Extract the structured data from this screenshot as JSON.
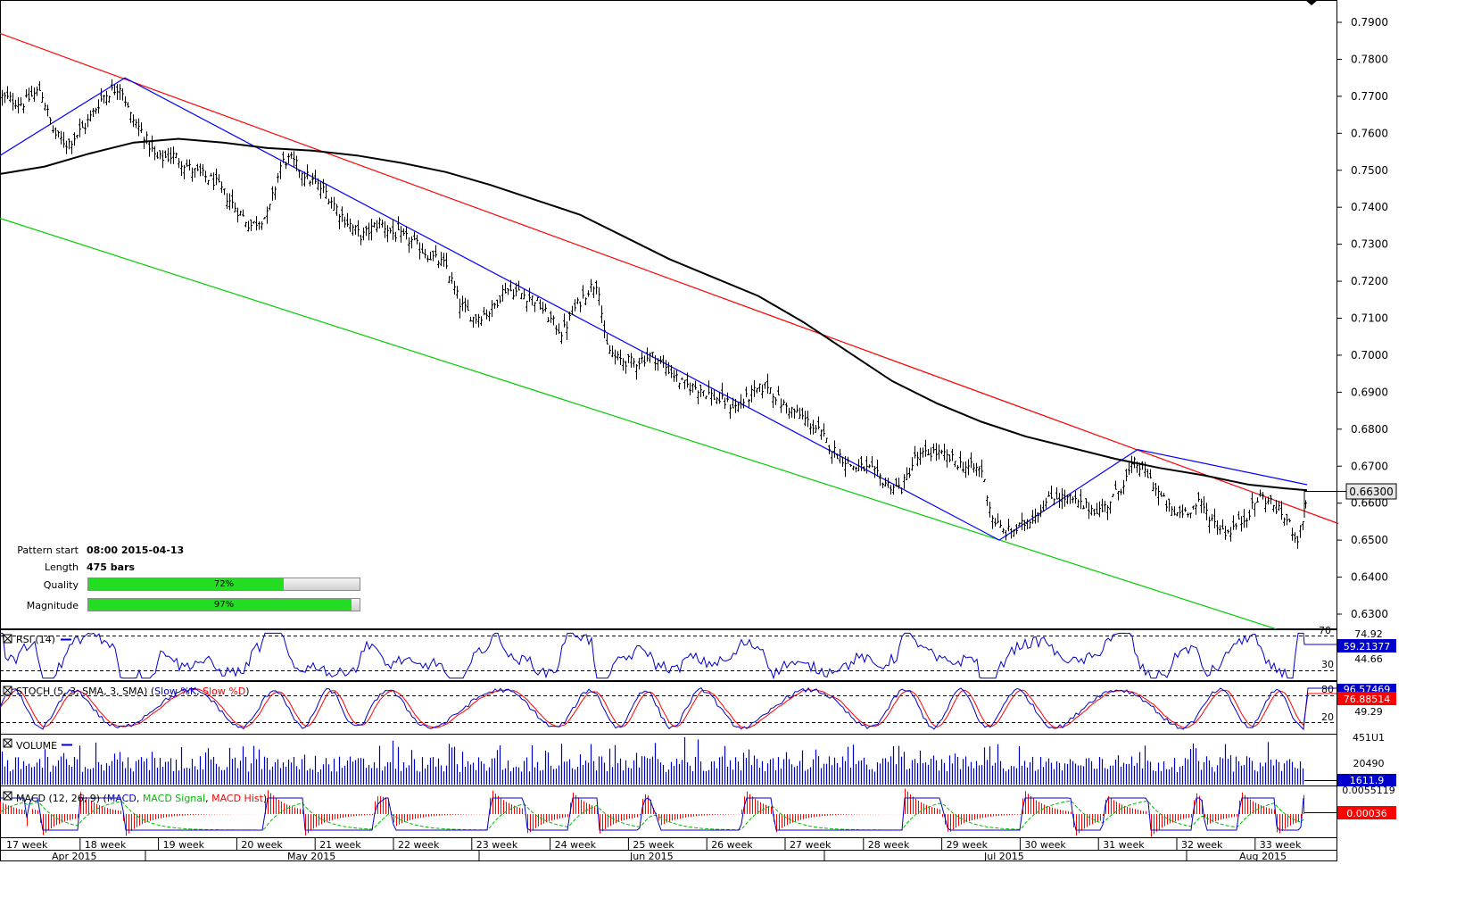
{
  "chart_data": {
    "type": "candlestick",
    "instrument_note": "",
    "main": {
      "ylim": [
        0.625,
        0.795
      ],
      "y_ticks": [
        "0.7900",
        "0.7800",
        "0.7700",
        "0.7600",
        "0.7500",
        "0.7400",
        "0.7300",
        "0.7200",
        "0.7100",
        "0.7000",
        "0.6900",
        "0.6800",
        "0.6700",
        "0.6600",
        "0.6500",
        "0.6400",
        "0.6300"
      ],
      "last_price": "0.66300",
      "price_path": [
        [
          0,
          0.77
        ],
        [
          25,
          0.768
        ],
        [
          45,
          0.772
        ],
        [
          60,
          0.76
        ],
        [
          75,
          0.757
        ],
        [
          95,
          0.762
        ],
        [
          115,
          0.77
        ],
        [
          135,
          0.773
        ],
        [
          145,
          0.765
        ],
        [
          160,
          0.76
        ],
        [
          175,
          0.753
        ],
        [
          195,
          0.754
        ],
        [
          215,
          0.75
        ],
        [
          240,
          0.747
        ],
        [
          260,
          0.741
        ],
        [
          280,
          0.735
        ],
        [
          300,
          0.738
        ],
        [
          315,
          0.752
        ],
        [
          325,
          0.753
        ],
        [
          345,
          0.748
        ],
        [
          365,
          0.744
        ],
        [
          385,
          0.737
        ],
        [
          405,
          0.732
        ],
        [
          425,
          0.736
        ],
        [
          440,
          0.733
        ],
        [
          460,
          0.731
        ],
        [
          480,
          0.727
        ],
        [
          500,
          0.724
        ],
        [
          515,
          0.714
        ],
        [
          530,
          0.71
        ],
        [
          550,
          0.712
        ],
        [
          565,
          0.718
        ],
        [
          580,
          0.717
        ],
        [
          600,
          0.715
        ],
        [
          615,
          0.71
        ],
        [
          630,
          0.706
        ],
        [
          645,
          0.713
        ],
        [
          660,
          0.718
        ],
        [
          670,
          0.72
        ],
        [
          678,
          0.703
        ],
        [
          690,
          0.699
        ],
        [
          710,
          0.698
        ],
        [
          730,
          0.7
        ],
        [
          750,
          0.696
        ],
        [
          765,
          0.692
        ],
        [
          785,
          0.691
        ],
        [
          805,
          0.688
        ],
        [
          825,
          0.686
        ],
        [
          845,
          0.69
        ],
        [
          860,
          0.692
        ],
        [
          875,
          0.687
        ],
        [
          895,
          0.684
        ],
        [
          915,
          0.68
        ],
        [
          935,
          0.674
        ],
        [
          955,
          0.67
        ],
        [
          975,
          0.669
        ],
        [
          995,
          0.665
        ],
        [
          1010,
          0.664
        ],
        [
          1025,
          0.672
        ],
        [
          1045,
          0.674
        ],
        [
          1065,
          0.672
        ],
        [
          1080,
          0.67
        ],
        [
          1100,
          0.669
        ],
        [
          1112,
          0.656
        ],
        [
          1125,
          0.652
        ],
        [
          1140,
          0.653
        ],
        [
          1160,
          0.657
        ],
        [
          1180,
          0.662
        ],
        [
          1200,
          0.661
        ],
        [
          1215,
          0.659
        ],
        [
          1235,
          0.658
        ],
        [
          1255,
          0.664
        ],
        [
          1272,
          0.671
        ],
        [
          1285,
          0.668
        ],
        [
          1300,
          0.662
        ],
        [
          1315,
          0.657
        ],
        [
          1330,
          0.658
        ],
        [
          1345,
          0.66
        ],
        [
          1360,
          0.655
        ],
        [
          1375,
          0.652
        ],
        [
          1395,
          0.656
        ],
        [
          1412,
          0.662
        ],
        [
          1425,
          0.66
        ],
        [
          1440,
          0.656
        ],
        [
          1455,
          0.65
        ],
        [
          1465,
          0.662
        ]
      ],
      "sma_path": [
        [
          0,
          0.749
        ],
        [
          50,
          0.751
        ],
        [
          100,
          0.7545
        ],
        [
          150,
          0.7575
        ],
        [
          200,
          0.7585
        ],
        [
          250,
          0.7575
        ],
        [
          300,
          0.756
        ],
        [
          350,
          0.7553
        ],
        [
          400,
          0.754
        ],
        [
          450,
          0.752
        ],
        [
          500,
          0.7495
        ],
        [
          550,
          0.746
        ],
        [
          600,
          0.742
        ],
        [
          650,
          0.738
        ],
        [
          700,
          0.732
        ],
        [
          750,
          0.726
        ],
        [
          800,
          0.721
        ],
        [
          850,
          0.716
        ],
        [
          900,
          0.709
        ],
        [
          950,
          0.701
        ],
        [
          1000,
          0.693
        ],
        [
          1050,
          0.687
        ],
        [
          1100,
          0.682
        ],
        [
          1150,
          0.678
        ],
        [
          1200,
          0.675
        ],
        [
          1250,
          0.672
        ],
        [
          1300,
          0.6695
        ],
        [
          1350,
          0.6675
        ],
        [
          1400,
          0.665
        ],
        [
          1440,
          0.664
        ],
        [
          1465,
          0.6635
        ]
      ],
      "trendlines": [
        {
          "name": "upper",
          "color": "#ff0000",
          "points": [
            [
              0,
              0.787
            ],
            [
              1500,
              0.6545
            ]
          ]
        },
        {
          "name": "lower",
          "color": "#00cc00",
          "points": [
            [
              0,
              0.737
            ],
            [
              1430,
              0.626
            ]
          ]
        },
        {
          "name": "zigzag",
          "color": "#0000ff",
          "points": [
            [
              0,
              0.754
            ],
            [
              140,
              0.775
            ],
            [
              1120,
              0.65
            ],
            [
              1275,
              0.6745
            ],
            [
              1465,
              0.665
            ]
          ]
        }
      ]
    },
    "info": {
      "pattern_start_label": "Pattern start",
      "pattern_start_value": "08:00 2015-04-13",
      "length_label": "Length",
      "length_value": "475 bars",
      "quality_label": "Quality",
      "quality_pct": 72,
      "quality_text": "72%",
      "magnitude_label": "Magnitude",
      "magnitude_pct": 97,
      "magnitude_text": "97%"
    },
    "rsi": {
      "title_a": "RSI (14)",
      "levels": {
        "upper": "70",
        "lower": "30"
      },
      "scale_top": "74.92",
      "scale_mid": "44.66",
      "last": "59.21377",
      "last_color": "#0000cc"
    },
    "stoch": {
      "title_a": "STOCH (5, 3, SMA, 3, SMA) (",
      "title_k": "Slow %K",
      "title_sep": ", ",
      "title_d": "Slow %D",
      "title_end": ")",
      "levels": {
        "upper": "80",
        "lower": "20"
      },
      "scale_mid": "49.29",
      "last_k": "96.57469",
      "last_d": "76.88514",
      "k_color": "#0000cc",
      "d_color": "#ff0000"
    },
    "volume": {
      "title_a": "VOLUME",
      "scale_top": "451U1",
      "scale_mid": "20490",
      "last": "1611.9",
      "color": "#0000cc"
    },
    "macd": {
      "title_a": "MACD (12, 26, 9) (",
      "title_macd": "MACD",
      "title_sep1": ", ",
      "title_signal": "MACD Signal",
      "title_sep2": ", ",
      "title_hist": "MACD Hist",
      "title_end": ")",
      "scale_top": "0.0055119",
      "last": "0.00036",
      "last_color": "#ff0000"
    },
    "weeks": [
      "17 week",
      "18 week",
      "19 week",
      "20 week",
      "21 week",
      "22 week",
      "23 week",
      "24 week",
      "25 week",
      "26 week",
      "27 week",
      "28 week",
      "29 week",
      "30 week",
      "31 week",
      "32 week",
      "33 week"
    ],
    "months": [
      "Apr 2015",
      "May 2015",
      "Jun 2015",
      "Jul 2015",
      "Aug 2015"
    ]
  }
}
